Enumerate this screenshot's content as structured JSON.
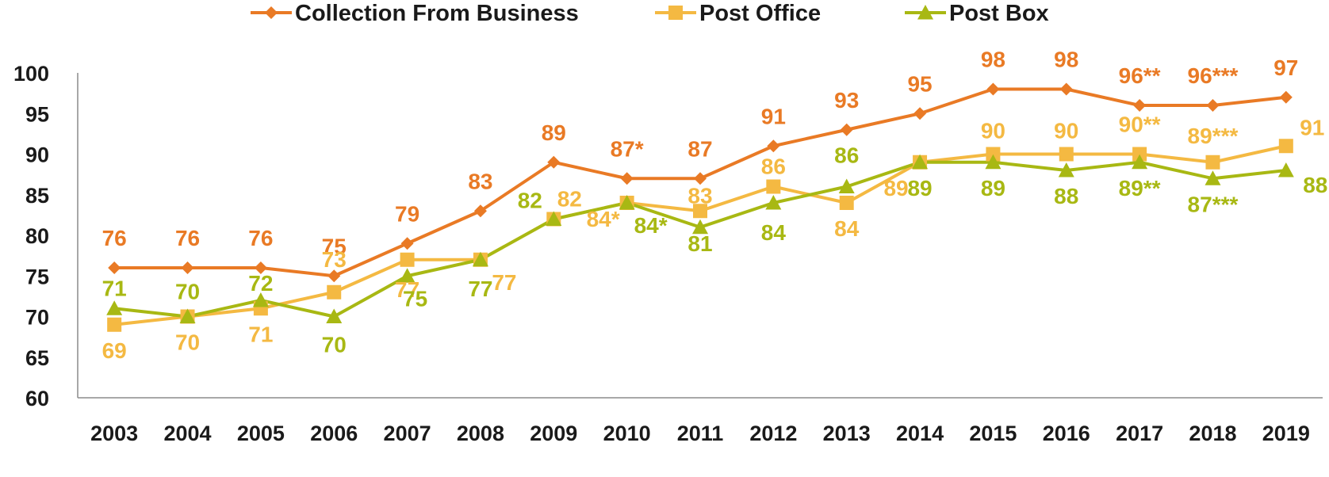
{
  "chart_data": {
    "type": "line",
    "categories": [
      "2003",
      "2004",
      "2005",
      "2006",
      "2007",
      "2008",
      "2009",
      "2010",
      "2011",
      "2012",
      "2013",
      "2014",
      "2015",
      "2016",
      "2017",
      "2018",
      "2019"
    ],
    "ylim": [
      60,
      100
    ],
    "yticks": [
      "60",
      "65",
      "70",
      "75",
      "80",
      "85",
      "90",
      "95",
      "100"
    ],
    "grid": false,
    "legend": "top-center",
    "series": [
      {
        "name": "Collection From Business",
        "color": "#E97A25",
        "marker": "diamond",
        "values": [
          76,
          76,
          76,
          75,
          79,
          83,
          89,
          87,
          87,
          91,
          93,
          95,
          98,
          98,
          96,
          96,
          97
        ],
        "labels": [
          "76",
          "76",
          "76",
          "75",
          "79",
          "83",
          "89",
          "87*",
          "87",
          "91",
          "93",
          "95",
          "98",
          "98",
          "96**",
          "96***",
          "97"
        ]
      },
      {
        "name": "Post Office",
        "color": "#F4B942",
        "marker": "square",
        "values": [
          69,
          70,
          71,
          73,
          77,
          77,
          82,
          84,
          83,
          86,
          84,
          89,
          90,
          90,
          90,
          89,
          91
        ],
        "labels": [
          "69",
          "70",
          "71",
          "73",
          "77",
          "77",
          "82",
          "84*",
          "83",
          "86",
          "84",
          "89",
          "90",
          "90",
          "90**",
          "89***",
          "91"
        ]
      },
      {
        "name": "Post Box",
        "color": "#A8B813",
        "marker": "triangle",
        "values": [
          71,
          70,
          72,
          70,
          75,
          77,
          82,
          84,
          81,
          84,
          86,
          89,
          89,
          88,
          89,
          87,
          88
        ],
        "labels": [
          "71",
          "70",
          "72",
          "70",
          "75",
          "77",
          "82",
          "84*",
          "81",
          "84",
          "86",
          "89",
          "89",
          "88",
          "89**",
          "87***",
          "88"
        ]
      }
    ]
  }
}
